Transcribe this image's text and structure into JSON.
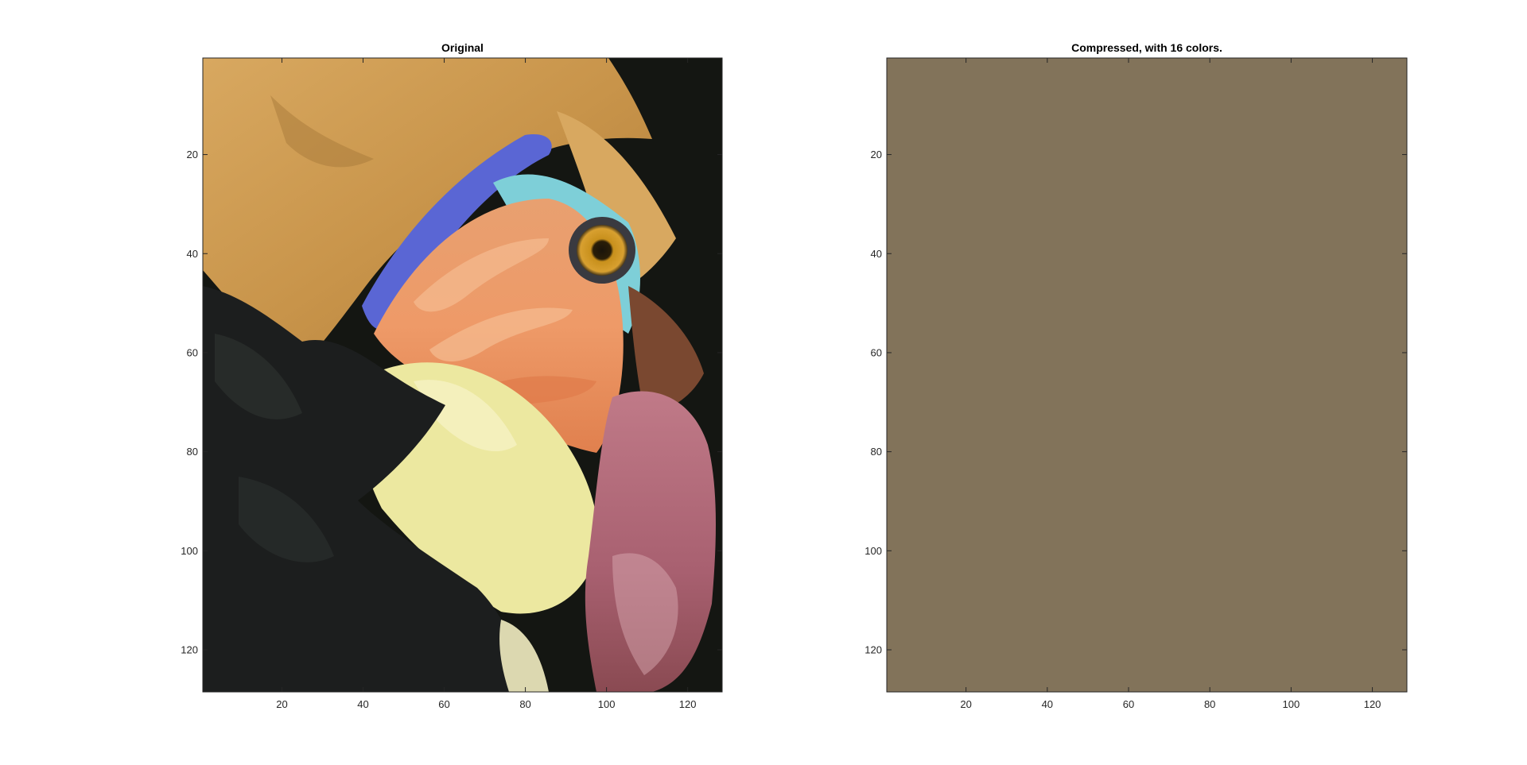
{
  "chart_data": [
    {
      "type": "image",
      "title": "Original",
      "xlabel": "",
      "ylabel": "",
      "xlim": [
        0.5,
        128.5
      ],
      "ylim": [
        0.5,
        128.5
      ],
      "y_direction": "reverse",
      "xticks": [
        20,
        40,
        60,
        80,
        100,
        120
      ],
      "yticks": [
        20,
        40,
        60,
        80,
        100,
        120
      ],
      "xtick_labels": [
        "20",
        "40",
        "60",
        "80",
        "100",
        "120"
      ],
      "ytick_labels": [
        "20",
        "40",
        "60",
        "80",
        "100",
        "120"
      ],
      "image_subject": "close-up photo of a hornbill bird head",
      "colors": {
        "plumage_orange": "#c8964a",
        "plumage_black": "#1e2020",
        "beak_yellow": "#ece8a0",
        "beak_orange": "#e8905a",
        "blue": "#5a6ad6",
        "cyan": "#7ed0dc",
        "pouch_red": "#b0707e",
        "background": "#141612"
      }
    },
    {
      "type": "image",
      "title": "Compressed, with 16 colors.",
      "xlabel": "",
      "ylabel": "",
      "xlim": [
        0.5,
        128.5
      ],
      "ylim": [
        0.5,
        128.5
      ],
      "y_direction": "reverse",
      "xticks": [
        20,
        40,
        60,
        80,
        100,
        120
      ],
      "yticks": [
        20,
        40,
        60,
        80,
        100,
        120
      ],
      "xtick_labels": [
        "20",
        "40",
        "60",
        "80",
        "100",
        "120"
      ],
      "ytick_labels": [
        "20",
        "40",
        "60",
        "80",
        "100",
        "120"
      ],
      "fill_color": "#82735a"
    }
  ]
}
